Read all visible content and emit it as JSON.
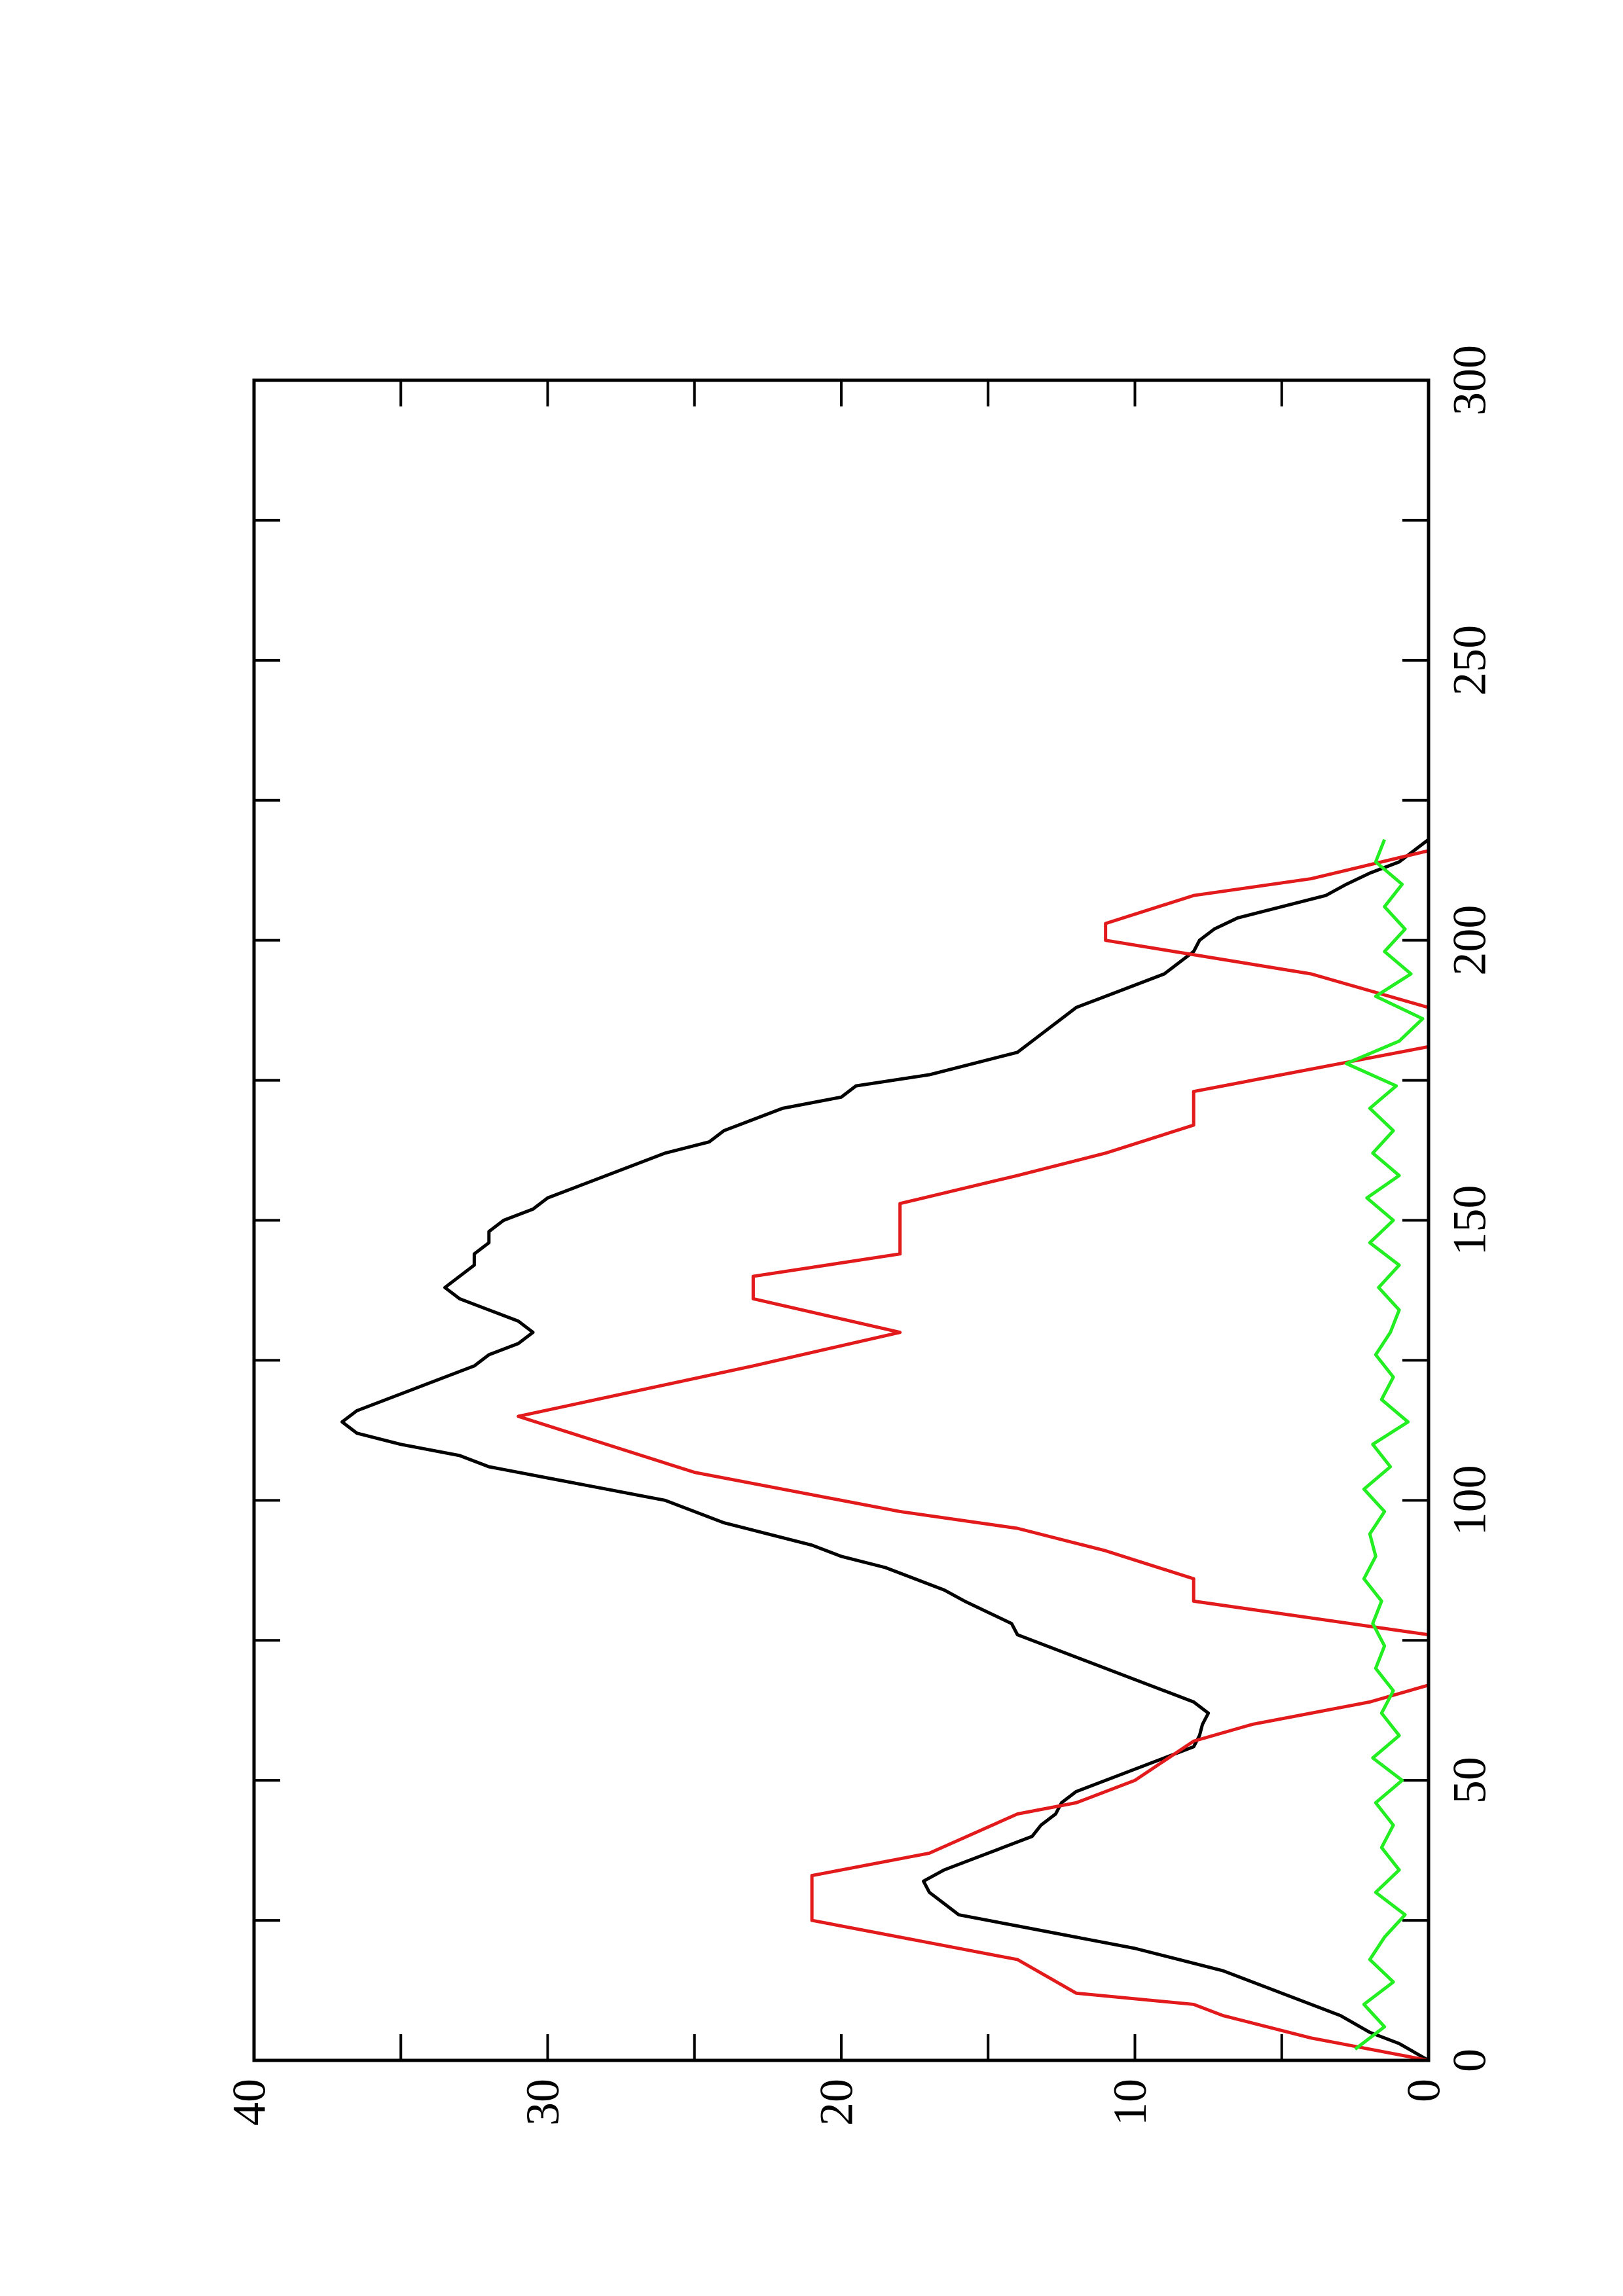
{
  "chart_data": {
    "type": "line",
    "xlim": [
      0,
      300
    ],
    "xticks": [
      0,
      50,
      100,
      150,
      200,
      250,
      300
    ],
    "xticks_minor": [
      25,
      75,
      125,
      175,
      225,
      275
    ],
    "ylim": [
      0,
      40
    ],
    "yticks": [
      0,
      10,
      20,
      30,
      40
    ],
    "yticks_minor": [
      5,
      15,
      25,
      35
    ],
    "series": [
      {
        "color": "#000000",
        "x": [
          0,
          3,
          5,
          8,
          10,
          12,
          14,
          16,
          18,
          20,
          22,
          24,
          26,
          28,
          30,
          32,
          34,
          36,
          38,
          40,
          42,
          44,
          46,
          48,
          50,
          52,
          54,
          56,
          58,
          60,
          62,
          64,
          66,
          68,
          70,
          72,
          74,
          76,
          78,
          80,
          82,
          84,
          86,
          88,
          90,
          92,
          94,
          96,
          98,
          100,
          102,
          104,
          106,
          108,
          110,
          112,
          114,
          116,
          118,
          120,
          122,
          124,
          126,
          128,
          130,
          132,
          134,
          136,
          138,
          140,
          142,
          144,
          146,
          148,
          150,
          152,
          154,
          156,
          158,
          160,
          162,
          164,
          166,
          168,
          170,
          172,
          174,
          176,
          178,
          180,
          182,
          184,
          186,
          188,
          190,
          192,
          194,
          196,
          198,
          200,
          202,
          204,
          206,
          208,
          210,
          212,
          214,
          216,
          218
        ],
        "values": [
          0,
          1,
          2,
          3,
          4,
          5,
          6,
          7,
          8.5,
          10,
          12,
          14,
          16,
          16.5,
          17,
          17.2,
          16.5,
          15.5,
          14.5,
          13.5,
          13.2,
          12.7,
          12.5,
          12,
          11,
          10,
          9,
          8,
          7.8,
          7.7,
          7.5,
          8,
          9,
          10,
          11,
          12,
          13,
          14,
          14.2,
          15,
          15.8,
          16.5,
          17.5,
          18.5,
          20,
          21,
          22.5,
          24,
          25,
          26,
          28,
          30,
          32,
          33,
          35,
          36.5,
          37,
          36.5,
          35.5,
          34.5,
          33.5,
          32.5,
          32,
          31,
          30.5,
          31,
          32,
          33,
          33.5,
          33,
          32.5,
          32.5,
          32,
          32,
          31.5,
          30.5,
          30,
          29,
          28,
          27,
          26,
          24.5,
          24,
          23,
          22,
          20,
          19.5,
          17,
          15.5,
          14,
          13.5,
          13,
          12.5,
          12,
          11,
          10,
          9,
          8.5,
          8,
          7.8,
          7.3,
          6.5,
          5,
          3.5,
          2.8,
          2,
          1,
          0.5,
          0
        ]
      },
      {
        "color": "#e31a1c",
        "x": [
          0,
          4,
          8,
          10,
          12,
          18,
          25,
          33,
          37,
          44,
          46,
          50,
          57,
          60,
          62,
          64,
          67,
          null,
          76,
          82,
          86,
          91,
          95,
          98,
          103,
          105,
          115,
          124,
          130,
          136,
          140,
          144,
          153,
          158,
          162,
          167,
          173,
          181,
          null,
          188,
          194,
          200,
          203,
          208,
          211,
          216
        ],
        "values": [
          0,
          4,
          7,
          8,
          12,
          14,
          21,
          21,
          17,
          14,
          12,
          10,
          8,
          6,
          4,
          2,
          0,
          null,
          0,
          8,
          8,
          11,
          14,
          18,
          23,
          25,
          31,
          23,
          18,
          23,
          23,
          18,
          18,
          14,
          11,
          8,
          8,
          0,
          null,
          0,
          4,
          11,
          11,
          8,
          4,
          0
        ]
      },
      {
        "color": "#22ee22",
        "x": [
          2,
          6,
          10,
          14,
          18,
          22,
          26,
          30,
          34,
          38,
          42,
          46,
          50,
          54,
          58,
          62,
          66,
          70,
          74,
          78,
          82,
          86,
          90,
          94,
          98,
          102,
          106,
          110,
          114,
          118,
          122,
          126,
          130,
          134,
          138,
          142,
          146,
          150,
          154,
          158,
          162,
          166,
          170,
          174,
          178,
          182,
          186,
          190,
          194,
          198,
          202,
          206,
          210,
          214,
          218
        ],
        "values": [
          2.5,
          1.5,
          2.2,
          1.2,
          2.0,
          1.5,
          0.8,
          1.8,
          1.0,
          1.6,
          1.2,
          1.8,
          0.9,
          1.9,
          1.0,
          1.6,
          1.2,
          1.8,
          1.5,
          1.9,
          1.6,
          2.2,
          1.8,
          2.0,
          1.5,
          2.2,
          1.3,
          1.9,
          0.7,
          1.6,
          1.2,
          1.8,
          1.3,
          1.0,
          1.7,
          1.0,
          2.0,
          1.2,
          2.1,
          1.0,
          1.9,
          1.2,
          2.0,
          1.1,
          2.8,
          1.0,
          0.2,
          1.8,
          0.6,
          1.5,
          0.8,
          1.5,
          0.9,
          1.8,
          1.5
        ]
      }
    ]
  }
}
